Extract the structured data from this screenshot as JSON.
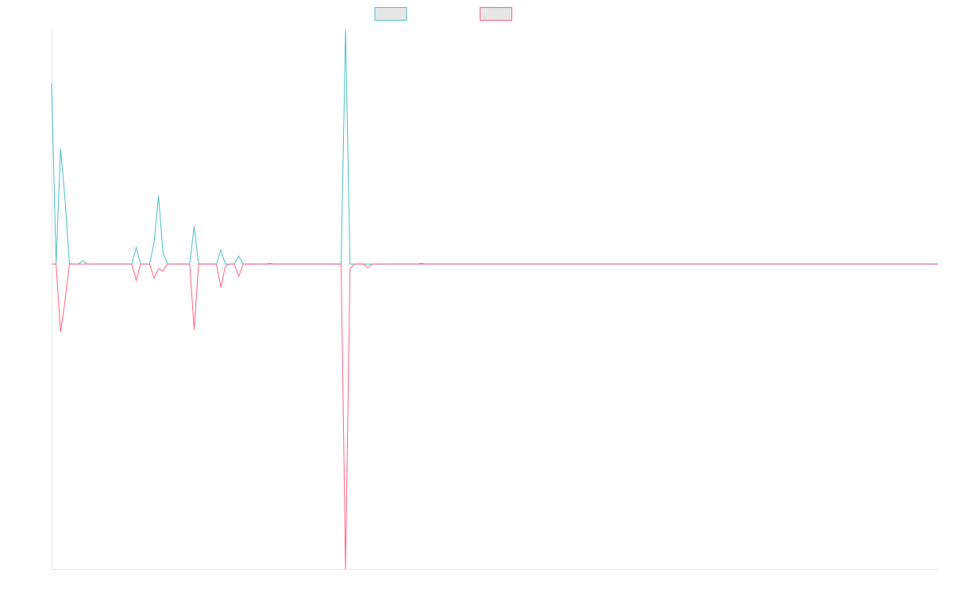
{
  "chart_data": {
    "type": "line",
    "ylim": [
      -1.3,
      1
    ],
    "series": [
      {
        "color": "#4bc0c0",
        "values": [
          0.77,
          0,
          0.49,
          0.28,
          0,
          0,
          0,
          0.014,
          0,
          0,
          0,
          0,
          0,
          0,
          0,
          0,
          0,
          0,
          0,
          0.07,
          0,
          0,
          0,
          0.09,
          0.29,
          0.05,
          0,
          0,
          0,
          0,
          0,
          0,
          0.16,
          0,
          0,
          0,
          0,
          0,
          0.06,
          0,
          0,
          0,
          0.034,
          0,
          0,
          0,
          0,
          0,
          0,
          0.003,
          0,
          0,
          0,
          0,
          0,
          0,
          0,
          0,
          0,
          0,
          0,
          0,
          0,
          0,
          0,
          0,
          1,
          0,
          0,
          0,
          0,
          0,
          0,
          0,
          0,
          0,
          0,
          0,
          0,
          0,
          0,
          0,
          0,
          0.003,
          0,
          0,
          0,
          0,
          0,
          0,
          0,
          0,
          0,
          0,
          0,
          0,
          0,
          0,
          0,
          0,
          0,
          0,
          0,
          0,
          0,
          0,
          0,
          0,
          0,
          0,
          0,
          0,
          0,
          0,
          0,
          0,
          0,
          0,
          0,
          0,
          0,
          0,
          0,
          0,
          0,
          0,
          0,
          0,
          0,
          0,
          0,
          0,
          0,
          0,
          0,
          0,
          0,
          0,
          0,
          0,
          0,
          0,
          0,
          0,
          0,
          0,
          0,
          0,
          0,
          0,
          0,
          0,
          0,
          0,
          0,
          0,
          0,
          0,
          0,
          0,
          0,
          0,
          0,
          0,
          0,
          0,
          0,
          0,
          0,
          0,
          0,
          0,
          0,
          0,
          0,
          0,
          0,
          0,
          0,
          0,
          0,
          0,
          0,
          0,
          0,
          0,
          0,
          0,
          0,
          0,
          0,
          0,
          0,
          0,
          0,
          0,
          0,
          0,
          0,
          0
        ]
      },
      {
        "color": "#ff6384",
        "values": [
          0,
          0,
          -0.29,
          -0.16,
          0,
          0,
          0,
          0,
          0,
          0,
          0,
          0,
          0,
          0,
          0,
          0,
          0,
          0,
          0,
          -0.07,
          0,
          0,
          0,
          -0.06,
          -0.02,
          -0.03,
          0,
          0,
          0,
          0,
          0,
          0,
          -0.28,
          0,
          0,
          0,
          0,
          0,
          -0.1,
          -0.01,
          0,
          0,
          -0.054,
          0,
          0,
          0,
          0,
          0,
          0,
          0,
          0,
          0,
          0,
          0,
          0,
          0,
          0,
          0,
          0,
          0,
          0,
          0,
          0,
          0,
          0,
          0,
          -1.3,
          -0.02,
          0,
          0,
          0,
          -0.017,
          0,
          0,
          0,
          0,
          0,
          0,
          0,
          0,
          0,
          0,
          0,
          0,
          0,
          0,
          0,
          0,
          0,
          0,
          0,
          0,
          0,
          0,
          0,
          0,
          0,
          0,
          0,
          0,
          0,
          0,
          0,
          0,
          0,
          0,
          0,
          0,
          0,
          0,
          0,
          0,
          0,
          0,
          0,
          0,
          0,
          0,
          0,
          0,
          0,
          0,
          0,
          0,
          0,
          0,
          0,
          0,
          0,
          0,
          0,
          0,
          0,
          0,
          0,
          0,
          0,
          0,
          0,
          0,
          0,
          0,
          0,
          0,
          0,
          0,
          0,
          0,
          0,
          0,
          0,
          0,
          0,
          0,
          0,
          0,
          0,
          0,
          0,
          0,
          0,
          0,
          0,
          0,
          0,
          0,
          0,
          0,
          0,
          0,
          0,
          0,
          0,
          0,
          0,
          0,
          0,
          0,
          0,
          0,
          0,
          0,
          0,
          0,
          0,
          0,
          0,
          0,
          0,
          0,
          0,
          0,
          0,
          0,
          0,
          0,
          0,
          0,
          0,
          0
        ]
      }
    ]
  }
}
